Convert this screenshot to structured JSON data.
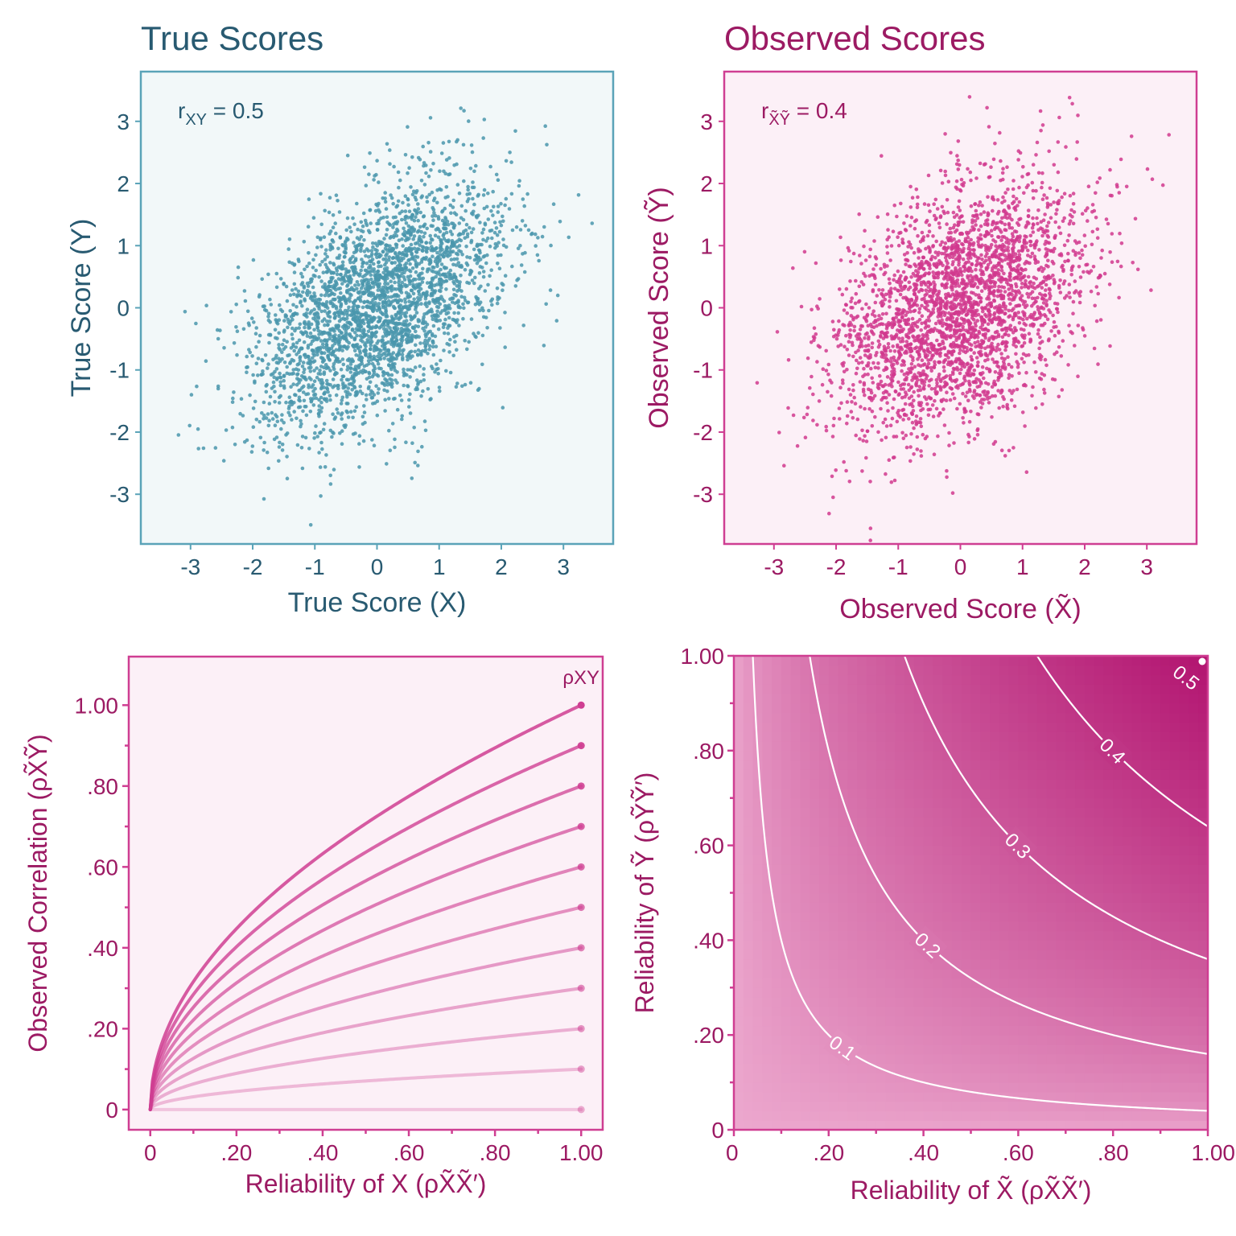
{
  "colors": {
    "teal_dark": "#285a71",
    "teal_point": "#4a97ad",
    "teal_frame": "#5aa3b8",
    "teal_bg": "#f2f8f9",
    "magenta_dark": "#9c1a63",
    "magenta_point": "#d13a8e",
    "magenta_frame": "#cf3e92",
    "pink_bg": "#fcf0f7",
    "contour_line": "#ffffff"
  },
  "chart_data": [
    {
      "type": "scatter",
      "title": "True Scores",
      "annotation": {
        "base": "r",
        "sub": "XY",
        "value": " = 0.5"
      },
      "xlabel": "True Score (X)",
      "ylabel": "True Score (Y)",
      "xlim": [
        -3.8,
        3.8
      ],
      "ylim": [
        -3.8,
        3.8
      ],
      "xticks": [
        "-3",
        "-2",
        "-1",
        "0",
        "1",
        "2",
        "3"
      ],
      "yticks": [
        "-3",
        "-2",
        "-1",
        "0",
        "1",
        "2",
        "3"
      ],
      "n_points": 3000,
      "mean": [
        0,
        0
      ],
      "sd": [
        1,
        1
      ],
      "correlation": 0.5
    },
    {
      "type": "scatter",
      "title": "Observed Scores",
      "annotation": {
        "base": "r",
        "sub": "X̃Ỹ",
        "value": " = 0.4"
      },
      "xlabel": "Observed Score (X̃)",
      "ylabel": "Observed Score (Ỹ)",
      "xlim": [
        -3.8,
        3.8
      ],
      "ylim": [
        -3.8,
        3.8
      ],
      "xticks": [
        "-3",
        "-2",
        "-1",
        "0",
        "1",
        "2",
        "3"
      ],
      "yticks": [
        "-3",
        "-2",
        "-1",
        "0",
        "1",
        "2",
        "3"
      ],
      "n_points": 3000,
      "mean": [
        0,
        0
      ],
      "sd": [
        1,
        1
      ],
      "correlation": 0.4
    },
    {
      "type": "line",
      "xlabel": "Reliability of X (ρX̃X̃′)",
      "ylabel": "Observed Correlation (ρX̃Ỹ)",
      "legend_label": "ρXY",
      "xlim": [
        -0.05,
        1.05
      ],
      "ylim": [
        -0.05,
        1.12
      ],
      "xticks": [
        {
          "v": 0,
          "label": "0"
        },
        {
          "v": 0.2,
          "label": ".20"
        },
        {
          "v": 0.4,
          "label": ".40"
        },
        {
          "v": 0.6,
          "label": ".60"
        },
        {
          "v": 0.8,
          "label": ".80"
        },
        {
          "v": 1.0,
          "label": "1.00"
        }
      ],
      "yticks": [
        {
          "v": 0,
          "label": "0"
        },
        {
          "v": 0.2,
          "label": ".20"
        },
        {
          "v": 0.4,
          "label": ".40"
        },
        {
          "v": 0.6,
          "label": ".60"
        },
        {
          "v": 0.8,
          "label": ".80"
        },
        {
          "v": 1.0,
          "label": "1.00"
        }
      ],
      "formula": "observed_correlation = rho_XY * sqrt(reliability_X)",
      "series": [
        {
          "rho_xy": 1.0
        },
        {
          "rho_xy": 0.9
        },
        {
          "rho_xy": 0.8
        },
        {
          "rho_xy": 0.7
        },
        {
          "rho_xy": 0.6
        },
        {
          "rho_xy": 0.5
        },
        {
          "rho_xy": 0.4
        },
        {
          "rho_xy": 0.3
        },
        {
          "rho_xy": 0.2
        },
        {
          "rho_xy": 0.1
        },
        {
          "rho_xy": 0.0
        }
      ]
    },
    {
      "type": "heatmap",
      "xlabel": "Reliability of X̃ (ρX̃X̃′)",
      "ylabel": "Reliability of Ỹ (ρỸỸ′)",
      "xlim": [
        0,
        1
      ],
      "ylim": [
        0,
        1
      ],
      "xticks": [
        {
          "v": 0,
          "label": "0"
        },
        {
          "v": 0.2,
          "label": ".20"
        },
        {
          "v": 0.4,
          "label": ".40"
        },
        {
          "v": 0.6,
          "label": ".60"
        },
        {
          "v": 0.8,
          "label": ".80"
        },
        {
          "v": 1.0,
          "label": "1.00"
        }
      ],
      "yticks": [
        {
          "v": 0,
          "label": "0"
        },
        {
          "v": 0.2,
          "label": ".20"
        },
        {
          "v": 0.4,
          "label": ".40"
        },
        {
          "v": 0.6,
          "label": ".60"
        },
        {
          "v": 0.8,
          "label": ".80"
        },
        {
          "v": 1.0,
          "label": "1.00"
        }
      ],
      "true_correlation": 0.5,
      "formula": "observed_correlation = 0.5 * sqrt(reliability_X * reliability_Y)",
      "contours": [
        {
          "level": 0.1,
          "label": "0.1",
          "label_x": 0.23
        },
        {
          "level": 0.2,
          "label": "0.2",
          "label_x": 0.41
        },
        {
          "level": 0.3,
          "label": "0.3",
          "label_x": 0.6
        },
        {
          "level": 0.4,
          "label": "0.4",
          "label_x": 0.8
        },
        {
          "level": 0.5,
          "label": "0.5",
          "label_x": 0.98
        }
      ],
      "marked_point": {
        "x": 1.0,
        "y": 1.0
      }
    }
  ]
}
